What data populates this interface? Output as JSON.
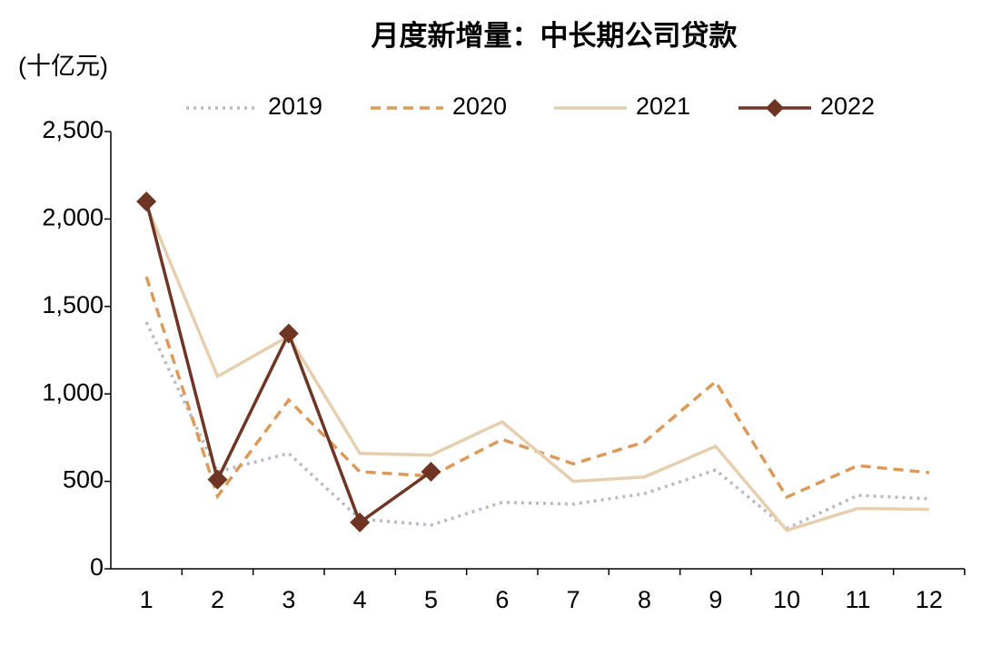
{
  "chart_data": {
    "type": "line",
    "title": "月度新增量：中长期公司贷款",
    "y_axis_label": "(十亿元)",
    "categories": [
      "1",
      "2",
      "3",
      "4",
      "5",
      "6",
      "7",
      "8",
      "9",
      "10",
      "11",
      "12"
    ],
    "series": [
      {
        "name": "2019",
        "color": "#b8b8c8",
        "style": "dotted",
        "values": [
          1410,
          555,
          660,
          285,
          250,
          380,
          370,
          430,
          565,
          230,
          420,
          400
        ]
      },
      {
        "name": "2020",
        "color": "#dc9a5a",
        "style": "dashed",
        "values": [
          1670,
          415,
          965,
          555,
          530,
          740,
          600,
          725,
          1070,
          410,
          590,
          550
        ]
      },
      {
        "name": "2021",
        "color": "#e6cfae",
        "style": "solid",
        "values": [
          2080,
          1100,
          1330,
          660,
          650,
          840,
          500,
          525,
          700,
          220,
          345,
          340
        ]
      },
      {
        "name": "2022",
        "color": "#6e3424",
        "style": "solid",
        "marker": "diamond",
        "values": [
          2100,
          510,
          1345,
          265,
          555,
          null,
          null,
          null,
          null,
          null,
          null,
          null
        ]
      }
    ],
    "ylim": [
      0,
      2500
    ],
    "yticks": [
      0,
      500,
      {
        "value": 1000,
        "label": "1,000"
      },
      {
        "value": 1500,
        "label": "1,500"
      },
      {
        "value": 2000,
        "label": "2,000"
      },
      {
        "value": 2500,
        "label": "2,500"
      }
    ],
    "grid": false,
    "legend": "top"
  }
}
